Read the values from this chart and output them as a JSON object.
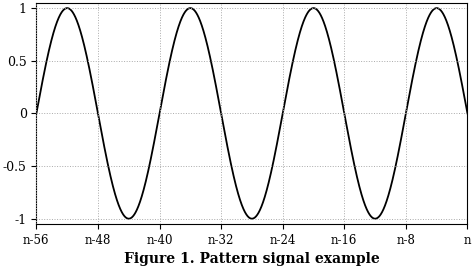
{
  "title": "Figure 1. Pattern signal example",
  "title_fontsize": 10,
  "title_fontweight": "bold",
  "xlim": [
    -56,
    0
  ],
  "ylim": [
    -1.05,
    1.05
  ],
  "yticks": [
    -1,
    -0.5,
    0,
    0.5,
    1
  ],
  "ytick_labels": [
    "-1",
    "-0.5",
    "0",
    "0.5",
    "1"
  ],
  "xtick_positions": [
    -56,
    -48,
    -40,
    -32,
    -24,
    -16,
    -8,
    0
  ],
  "xtick_labels": [
    "n-56",
    "n-48",
    "n-40",
    "n-32",
    "n-24",
    "n-16",
    "n-8",
    "n"
  ],
  "line_color": "#000000",
  "line_width": 1.3,
  "grid_color": "#aaaaaa",
  "grid_linestyle": ":",
  "grid_linewidth": 0.7,
  "period": 16,
  "background_color": "#ffffff",
  "spine_color": "#000000"
}
